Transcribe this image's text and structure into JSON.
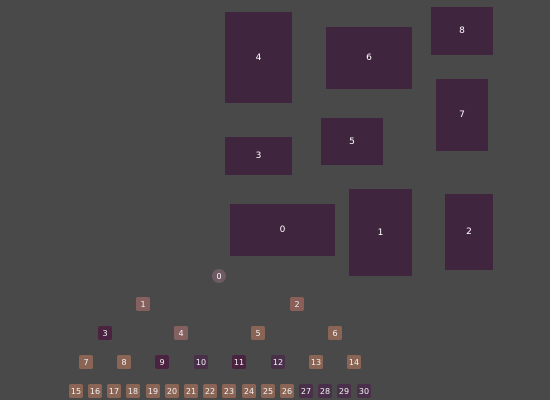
{
  "colors": {
    "background": "#494949",
    "rect_fill": "#40253e",
    "text": "#ffffff"
  },
  "rectangles": [
    {
      "label": "0"
    },
    {
      "label": "1"
    },
    {
      "label": "2"
    },
    {
      "label": "3"
    },
    {
      "label": "4"
    },
    {
      "label": "5"
    },
    {
      "label": "6"
    },
    {
      "label": "7"
    },
    {
      "label": "8"
    }
  ],
  "tree_nodes": [
    {
      "label": "0",
      "color": "#6e5a62"
    },
    {
      "label": "1",
      "color": "#84605f"
    },
    {
      "label": "2",
      "color": "#8a5f5a"
    },
    {
      "label": "3",
      "color": "#4a2340"
    },
    {
      "label": "4",
      "color": "#84605f"
    },
    {
      "label": "5",
      "color": "#8a6555"
    },
    {
      "label": "6",
      "color": "#8a6555"
    },
    {
      "label": "7",
      "color": "#8a6555"
    },
    {
      "label": "8",
      "color": "#8a6555"
    },
    {
      "label": "9",
      "color": "#4a2340"
    },
    {
      "label": "10",
      "color": "#4a2f4a"
    },
    {
      "label": "11",
      "color": "#4a2340"
    },
    {
      "label": "12",
      "color": "#4a2f4a"
    },
    {
      "label": "13",
      "color": "#8a6555"
    },
    {
      "label": "14",
      "color": "#8a6555"
    },
    {
      "label": "15",
      "color": "#8a6555"
    },
    {
      "label": "16",
      "color": "#8a6555"
    },
    {
      "label": "17",
      "color": "#8a6555"
    },
    {
      "label": "18",
      "color": "#8a6555"
    },
    {
      "label": "19",
      "color": "#8a6555"
    },
    {
      "label": "20",
      "color": "#8a6555"
    },
    {
      "label": "21",
      "color": "#8a6555"
    },
    {
      "label": "22",
      "color": "#8a6555"
    },
    {
      "label": "23",
      "color": "#8a6555"
    },
    {
      "label": "24",
      "color": "#8a6555"
    },
    {
      "label": "25",
      "color": "#8a6555"
    },
    {
      "label": "26",
      "color": "#8a6555"
    },
    {
      "label": "27",
      "color": "#4a2f4a"
    },
    {
      "label": "28",
      "color": "#4a2f4a"
    },
    {
      "label": "29",
      "color": "#4a2f4a"
    },
    {
      "label": "30",
      "color": "#4a2f4a"
    }
  ]
}
